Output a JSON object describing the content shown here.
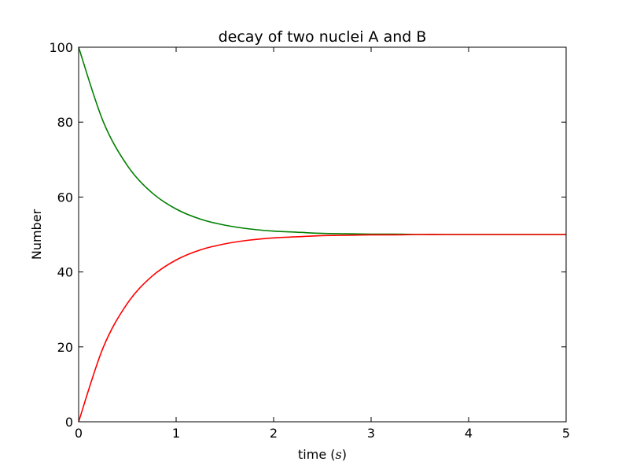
{
  "chart_data": {
    "type": "line",
    "title": "decay of two nuclei A and B",
    "xlabel": {
      "prefix": "time (",
      "var": "s",
      "suffix": ")"
    },
    "ylabel": "Number",
    "xlim": [
      0,
      5
    ],
    "ylim": [
      0,
      100
    ],
    "xticks": [
      0,
      1,
      2,
      3,
      4,
      5
    ],
    "yticks": [
      0,
      20,
      40,
      60,
      80,
      100
    ],
    "grid": false,
    "series": [
      {
        "color": "#008000",
        "x": [
          0,
          0.25,
          0.5,
          0.75,
          1,
          1.25,
          1.5,
          1.75,
          2,
          2.25,
          2.5,
          2.75,
          3,
          3.25,
          3.5,
          3.75,
          4,
          4.25,
          4.5,
          4.75,
          5
        ],
        "y": [
          100,
          80.3,
          68.4,
          61.2,
          56.8,
          54.1,
          52.5,
          51.5,
          50.9,
          50.6,
          50.3,
          50.2,
          50.1,
          50.1,
          50.0,
          50.0,
          50.0,
          50.0,
          50.0,
          50.0,
          50.0
        ]
      },
      {
        "color": "#ff0000",
        "x": [
          0,
          0.25,
          0.5,
          0.75,
          1,
          1.25,
          1.5,
          1.75,
          2,
          2.25,
          2.5,
          2.75,
          3,
          3.25,
          3.5,
          3.75,
          4,
          4.25,
          4.5,
          4.75,
          5
        ],
        "y": [
          0,
          19.7,
          31.6,
          38.8,
          43.2,
          45.9,
          47.5,
          48.5,
          49.1,
          49.4,
          49.7,
          49.8,
          49.9,
          49.9,
          50.0,
          50.0,
          50.0,
          50.0,
          50.0,
          50.0,
          50.0
        ]
      }
    ]
  }
}
